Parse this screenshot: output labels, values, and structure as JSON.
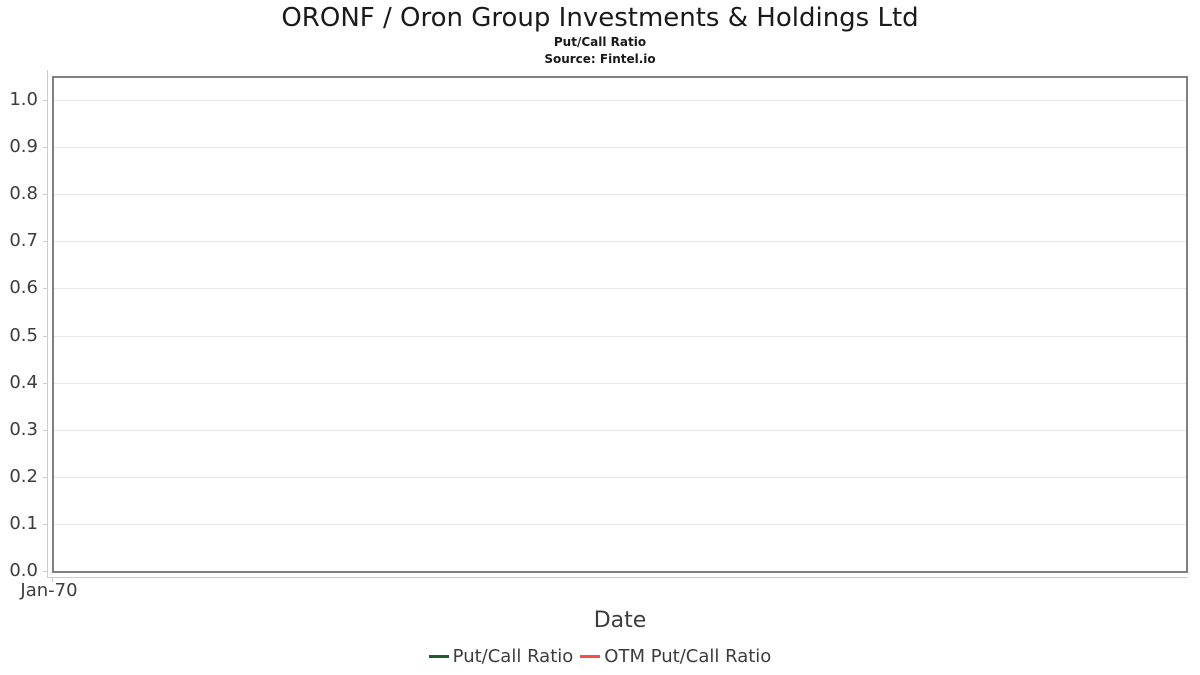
{
  "chart_data": {
    "type": "line",
    "title": "ORONF / Oron Group Investments & Holdings Ltd",
    "subtitle": "Put/Call Ratio",
    "source": "Source: Fintel.io",
    "xlabel": "Date",
    "ylabel": "",
    "ylim": [
      0.0,
      1.0
    ],
    "yticks": [
      0.0,
      0.1,
      0.2,
      0.3,
      0.4,
      0.5,
      0.6,
      0.7,
      0.8,
      0.9,
      1.0
    ],
    "ytick_decimals": 1,
    "x_tick_labels": [
      "Jan-70"
    ],
    "grid": "horizontal-only",
    "legend_position": "bottom-center",
    "series": [
      {
        "name": "Put/Call Ratio",
        "color": "#215c2f",
        "x": [],
        "values": []
      },
      {
        "name": "OTM Put/Call Ratio",
        "color": "#f94c46",
        "x": [],
        "values": []
      }
    ],
    "colors": {
      "plot_border": "#808080",
      "gridline": "#e8e8e8",
      "axis_line": "#cccccc",
      "title_text": "#1a1a1a",
      "label_text": "#3d3d3d"
    }
  }
}
